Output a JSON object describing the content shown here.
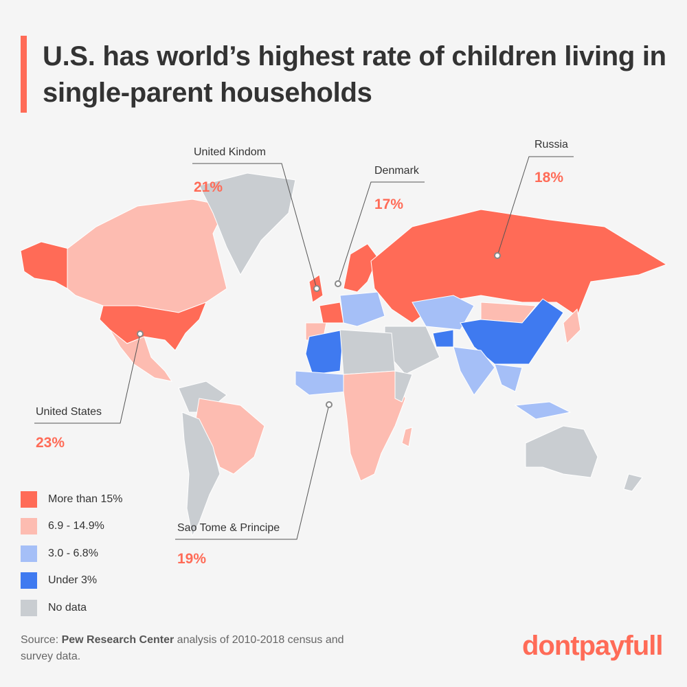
{
  "title": "U.S. has world’s highest rate of children living in single-parent households",
  "colors": {
    "more_than_15": "#ff6b57",
    "range_6_9_14_9": "#fdbcb1",
    "range_3_6_8": "#a5bff7",
    "under_3": "#3f7af0",
    "no_data": "#c9cdd1",
    "accent": "#ff6b57"
  },
  "callouts": [
    {
      "country": "United Kindom",
      "value": "21%"
    },
    {
      "country": "Denmark",
      "value": "17%"
    },
    {
      "country": "Russia",
      "value": "18%"
    },
    {
      "country": "United States",
      "value": "23%"
    },
    {
      "country": "Sao Tome & Principe",
      "value": "19%"
    }
  ],
  "legend": [
    {
      "label": "More than 15%",
      "color": "#ff6b57"
    },
    {
      "label": "6.9 - 14.9%",
      "color": "#fdbcb1"
    },
    {
      "label": "3.0 - 6.8%",
      "color": "#a5bff7"
    },
    {
      "label": "Under 3%",
      "color": "#3f7af0"
    },
    {
      "label": "No data",
      "color": "#c9cdd1"
    }
  ],
  "source": {
    "prefix": "Source: ",
    "org": "Pew Research Center",
    "rest": " analysis of 2010-2018 census and survey data."
  },
  "logo": "dontpayfull"
}
